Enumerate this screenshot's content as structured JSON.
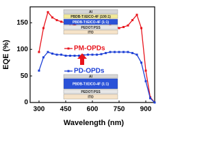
{
  "chart_data": {
    "type": "line",
    "x_label": "Wavelength (nm)",
    "y_label": "EQE (%)",
    "x": [
      300,
      325,
      350,
      375,
      400,
      425,
      450,
      475,
      500,
      525,
      550,
      575,
      600,
      625,
      650,
      675,
      700,
      725,
      750,
      775,
      800,
      825,
      850,
      875,
      900,
      925,
      950
    ],
    "series": [
      {
        "name": "PM-OPDs",
        "color": "#e8141c",
        "values": [
          95,
          140,
          170,
          160,
          155,
          152,
          150,
          148,
          146,
          143,
          140,
          140,
          141,
          140,
          140,
          142,
          144,
          143,
          140,
          142,
          145,
          155,
          165,
          140,
          60,
          10,
          0
        ]
      },
      {
        "name": "PD-OPDs",
        "color": "#1c3fd6",
        "values": [
          60,
          85,
          95,
          92,
          90,
          90,
          88,
          88,
          88,
          88,
          89,
          90,
          90,
          90,
          91,
          93,
          95,
          95,
          95,
          95,
          95,
          93,
          90,
          75,
          40,
          8,
          0
        ]
      }
    ],
    "xlim": [
      250,
      950
    ],
    "ylim": [
      0,
      180
    ],
    "xticks": [
      300,
      450,
      600,
      750,
      900
    ],
    "yticks": [
      0,
      50,
      100,
      150
    ],
    "insets": [
      {
        "layers": [
          "Al",
          "PBDB-T:IEICO-4F (100:1)",
          "PBDB-T:IEICO-4F (1:1)",
          "PEDOT:PSS",
          "ITO"
        ]
      },
      {
        "layers": [
          "Al",
          "PBDB-T:IEICO-4F (1:1)",
          "PEDOT:PSS",
          "ITO"
        ]
      }
    ]
  }
}
